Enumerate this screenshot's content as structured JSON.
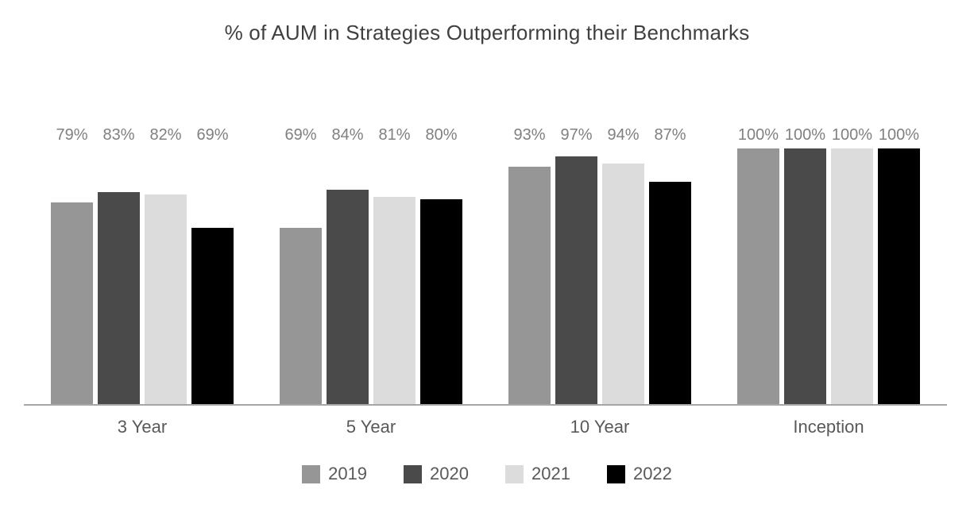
{
  "chart_data": {
    "type": "bar",
    "title": "% of AUM in Strategies Outperforming their Benchmarks",
    "categories": [
      "3 Year",
      "5 Year",
      "10 Year",
      "Inception"
    ],
    "series": [
      {
        "name": "2019",
        "color": "#969696",
        "values": [
          79,
          69,
          93,
          100
        ]
      },
      {
        "name": "2020",
        "color": "#4a4a4a",
        "values": [
          83,
          84,
          97,
          100
        ]
      },
      {
        "name": "2021",
        "color": "#dcdcdc",
        "values": [
          82,
          81,
          94,
          100
        ]
      },
      {
        "name": "2022",
        "color": "#000000",
        "values": [
          69,
          80,
          87,
          100
        ]
      }
    ],
    "data_label_suffix": "%",
    "ylim": [
      0,
      100
    ],
    "grid": false,
    "y_axis_visible": false,
    "x_axis_line_color": "#a6a6a6",
    "data_label_color": "#808080",
    "axis_label_color": "#595959",
    "title_color": "#404040",
    "legend_position": "bottom"
  }
}
